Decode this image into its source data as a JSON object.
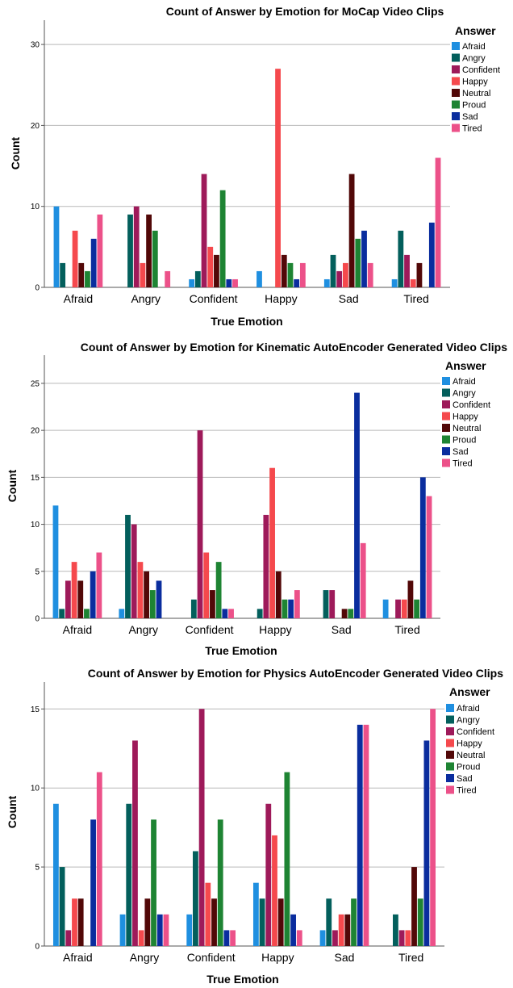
{
  "chart_data": [
    {
      "type": "bar",
      "title": "Count of Answer by Emotion for MoCap Video Clips",
      "xlabel": "True Emotion",
      "ylabel": "Count",
      "legend_title": "Answer",
      "legend_position": "right",
      "grid": true,
      "ylim": [
        0,
        33
      ],
      "yticks": [
        0,
        10,
        20,
        30
      ],
      "categories": [
        "Afraid",
        "Angry",
        "Confident",
        "Happy",
        "Sad",
        "Tired"
      ],
      "series": [
        {
          "name": "Afraid",
          "color": "#1f8fe0",
          "values": [
            10,
            0,
            1,
            2,
            1,
            1
          ]
        },
        {
          "name": "Angry",
          "color": "#035f5c",
          "values": [
            3,
            9,
            2,
            0,
            4,
            7
          ]
        },
        {
          "name": "Confident",
          "color": "#9e1a5a",
          "values": [
            0,
            10,
            14,
            0,
            2,
            4
          ]
        },
        {
          "name": "Happy",
          "color": "#f5494d",
          "values": [
            7,
            3,
            5,
            27,
            3,
            1
          ]
        },
        {
          "name": "Neutral",
          "color": "#520808",
          "values": [
            3,
            9,
            4,
            4,
            14,
            3
          ]
        },
        {
          "name": "Proud",
          "color": "#1e8433",
          "values": [
            2,
            7,
            12,
            3,
            6,
            0
          ]
        },
        {
          "name": "Sad",
          "color": "#0a2d9e",
          "values": [
            6,
            0,
            1,
            1,
            7,
            8
          ]
        },
        {
          "name": "Tired",
          "color": "#ec5189",
          "values": [
            9,
            2,
            1,
            3,
            3,
            16
          ]
        }
      ]
    },
    {
      "type": "bar",
      "title": "Count of Answer by Emotion for Kinematic AutoEncoder Generated Video Clips",
      "xlabel": "True Emotion",
      "ylabel": "Count",
      "legend_title": "Answer",
      "legend_position": "right",
      "grid": true,
      "ylim": [
        0,
        28
      ],
      "yticks": [
        0,
        5,
        10,
        15,
        20,
        25
      ],
      "categories": [
        "Afraid",
        "Angry",
        "Confident",
        "Happy",
        "Sad",
        "Tired"
      ],
      "series": [
        {
          "name": "Afraid",
          "color": "#1f8fe0",
          "values": [
            12,
            1,
            0,
            0,
            0,
            2
          ]
        },
        {
          "name": "Angry",
          "color": "#035f5c",
          "values": [
            1,
            11,
            2,
            1,
            3,
            0
          ]
        },
        {
          "name": "Confident",
          "color": "#9e1a5a",
          "values": [
            4,
            10,
            20,
            11,
            3,
            2
          ]
        },
        {
          "name": "Happy",
          "color": "#f5494d",
          "values": [
            6,
            6,
            7,
            16,
            0,
            2
          ]
        },
        {
          "name": "Neutral",
          "color": "#520808",
          "values": [
            4,
            5,
            3,
            5,
            1,
            4
          ]
        },
        {
          "name": "Proud",
          "color": "#1e8433",
          "values": [
            1,
            3,
            6,
            2,
            1,
            2
          ]
        },
        {
          "name": "Sad",
          "color": "#0a2d9e",
          "values": [
            5,
            4,
            1,
            2,
            24,
            15
          ]
        },
        {
          "name": "Tired",
          "color": "#ec5189",
          "values": [
            7,
            0,
            1,
            3,
            8,
            13
          ]
        }
      ]
    },
    {
      "type": "bar",
      "title": "Count of Answer by Emotion for Physics AutoEncoder Generated Video Clips",
      "xlabel": "True Emotion",
      "ylabel": "Count",
      "legend_title": "Answer",
      "legend_position": "right",
      "grid": true,
      "ylim": [
        0,
        16.7
      ],
      "yticks": [
        0,
        5,
        10,
        15
      ],
      "categories": [
        "Afraid",
        "Angry",
        "Confident",
        "Happy",
        "Sad",
        "Tired"
      ],
      "series": [
        {
          "name": "Afraid",
          "color": "#1f8fe0",
          "values": [
            9,
            2,
            2,
            4,
            1,
            0
          ]
        },
        {
          "name": "Angry",
          "color": "#035f5c",
          "values": [
            5,
            9,
            6,
            3,
            3,
            2
          ]
        },
        {
          "name": "Confident",
          "color": "#9e1a5a",
          "values": [
            1,
            13,
            15,
            9,
            1,
            1
          ]
        },
        {
          "name": "Happy",
          "color": "#f5494d",
          "values": [
            3,
            1,
            4,
            7,
            2,
            1
          ]
        },
        {
          "name": "Neutral",
          "color": "#520808",
          "values": [
            3,
            3,
            3,
            3,
            2,
            5
          ]
        },
        {
          "name": "Proud",
          "color": "#1e8433",
          "values": [
            0,
            8,
            8,
            11,
            3,
            3
          ]
        },
        {
          "name": "Sad",
          "color": "#0a2d9e",
          "values": [
            8,
            2,
            1,
            2,
            14,
            13
          ]
        },
        {
          "name": "Tired",
          "color": "#ec5189",
          "values": [
            11,
            2,
            1,
            1,
            14,
            15
          ]
        }
      ]
    }
  ]
}
